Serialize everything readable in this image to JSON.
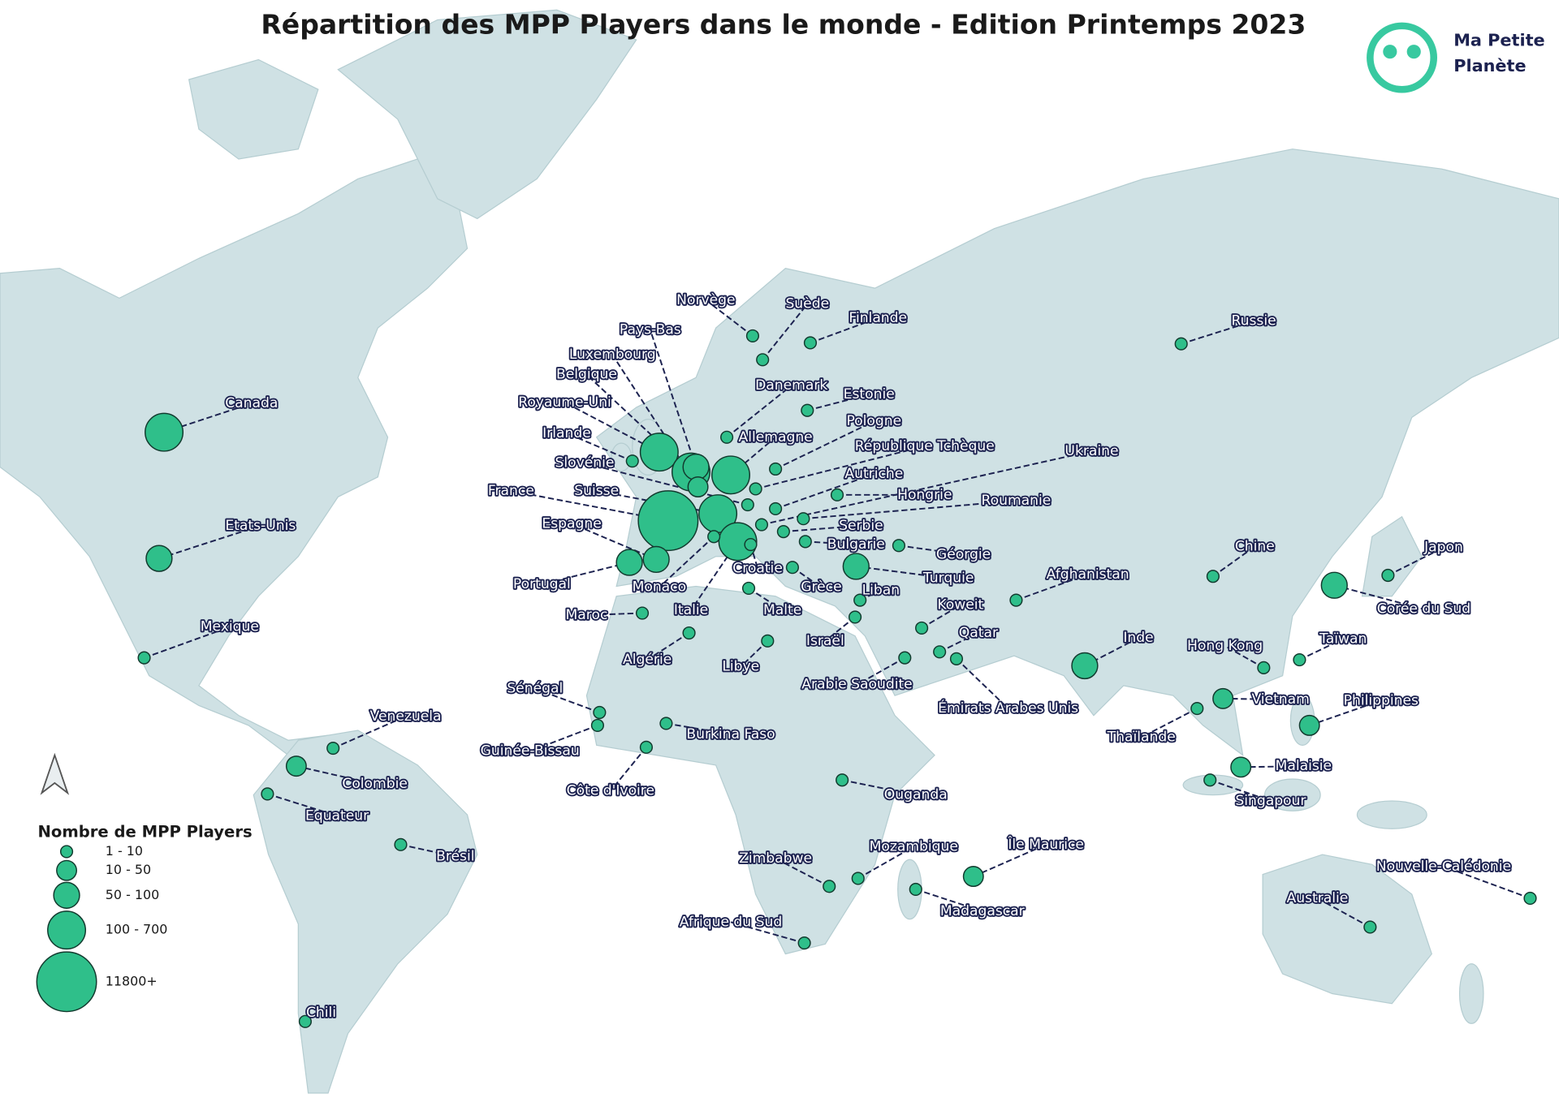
{
  "title": "Répartition des MPP Players dans le monde - Edition Printemps 2023",
  "logo": {
    "line1": "Ma Petite",
    "line2": "Planète"
  },
  "legend": {
    "title": "Nombre de MPP Players",
    "classes": [
      "1 - 10",
      "10 - 50",
      "50 - 100",
      "100 - 700",
      "11800+"
    ]
  },
  "countries": [
    {
      "name": "Canada",
      "class": 3
    },
    {
      "name": "Etats-Unis",
      "class": 2
    },
    {
      "name": "Mexique",
      "class": 0
    },
    {
      "name": "Venezuela",
      "class": 0
    },
    {
      "name": "Colombie",
      "class": 1
    },
    {
      "name": "Equateur",
      "class": 0
    },
    {
      "name": "Brésil",
      "class": 0
    },
    {
      "name": "Chili",
      "class": 0
    },
    {
      "name": "Royaume-Uni",
      "class": 3
    },
    {
      "name": "Irlande",
      "class": 0
    },
    {
      "name": "France",
      "class": 4
    },
    {
      "name": "Espagne",
      "class": 2
    },
    {
      "name": "Portugal",
      "class": 2
    },
    {
      "name": "Monaco",
      "class": 0
    },
    {
      "name": "Suisse",
      "class": 3
    },
    {
      "name": "Slovénie",
      "class": 0
    },
    {
      "name": "Belgique",
      "class": 3
    },
    {
      "name": "Luxembourg",
      "class": 1
    },
    {
      "name": "Pays-Bas",
      "class": 2
    },
    {
      "name": "Allemagne",
      "class": 3
    },
    {
      "name": "Norvège",
      "class": 0
    },
    {
      "name": "Suède",
      "class": 0
    },
    {
      "name": "Finlande",
      "class": 0
    },
    {
      "name": "Danemark",
      "class": 0
    },
    {
      "name": "Estonie",
      "class": 0
    },
    {
      "name": "Pologne",
      "class": 0
    },
    {
      "name": "République Tchèque",
      "class": 0
    },
    {
      "name": "Ukraine",
      "class": 0
    },
    {
      "name": "Autriche",
      "class": 0
    },
    {
      "name": "Hongrie",
      "class": 0
    },
    {
      "name": "Roumanie",
      "class": 0
    },
    {
      "name": "Serbie",
      "class": 0
    },
    {
      "name": "Bulgarie",
      "class": 0
    },
    {
      "name": "Croatie",
      "class": 0
    },
    {
      "name": "Italie",
      "class": 3
    },
    {
      "name": "Malte",
      "class": 0
    },
    {
      "name": "Grèce",
      "class": 0
    },
    {
      "name": "Géorgie",
      "class": 0
    },
    {
      "name": "Turquie",
      "class": 2
    },
    {
      "name": "Liban",
      "class": 0
    },
    {
      "name": "Israël",
      "class": 0
    },
    {
      "name": "Koweit",
      "class": 0
    },
    {
      "name": "Qatar",
      "class": 0
    },
    {
      "name": "Arabie Saoudite",
      "class": 0
    },
    {
      "name": "Émirats Arabes Unis",
      "class": 0
    },
    {
      "name": "Afghanistan",
      "class": 0
    },
    {
      "name": "Inde",
      "class": 2
    },
    {
      "name": "Chine",
      "class": 0
    },
    {
      "name": "Russie",
      "class": 0
    },
    {
      "name": "Japon",
      "class": 0
    },
    {
      "name": "Corée du Sud",
      "class": 2
    },
    {
      "name": "Taïwan",
      "class": 0
    },
    {
      "name": "Hong Kong",
      "class": 0
    },
    {
      "name": "Vietnam",
      "class": 1
    },
    {
      "name": "Philippines",
      "class": 1
    },
    {
      "name": "Thaïlande",
      "class": 0
    },
    {
      "name": "Malaisie",
      "class": 1
    },
    {
      "name": "Singapour",
      "class": 0
    },
    {
      "name": "Nouvelle-Calédonie",
      "class": 0
    },
    {
      "name": "Australie",
      "class": 0
    },
    {
      "name": "Maroc",
      "class": 0
    },
    {
      "name": "Algérie",
      "class": 0
    },
    {
      "name": "Libye",
      "class": 0
    },
    {
      "name": "Sénégal",
      "class": 0
    },
    {
      "name": "Guinée-Bissau",
      "class": 0
    },
    {
      "name": "Burkina Faso",
      "class": 0
    },
    {
      "name": "Côte d'Ivoire",
      "class": 0
    },
    {
      "name": "Ouganda",
      "class": 0
    },
    {
      "name": "Mozambique",
      "class": 0
    },
    {
      "name": "Zimbabwe",
      "class": 0
    },
    {
      "name": "Madagascar",
      "class": 0
    },
    {
      "name": "Île Maurice",
      "class": 1
    },
    {
      "name": "Afrique du Sud",
      "class": 0
    }
  ]
}
